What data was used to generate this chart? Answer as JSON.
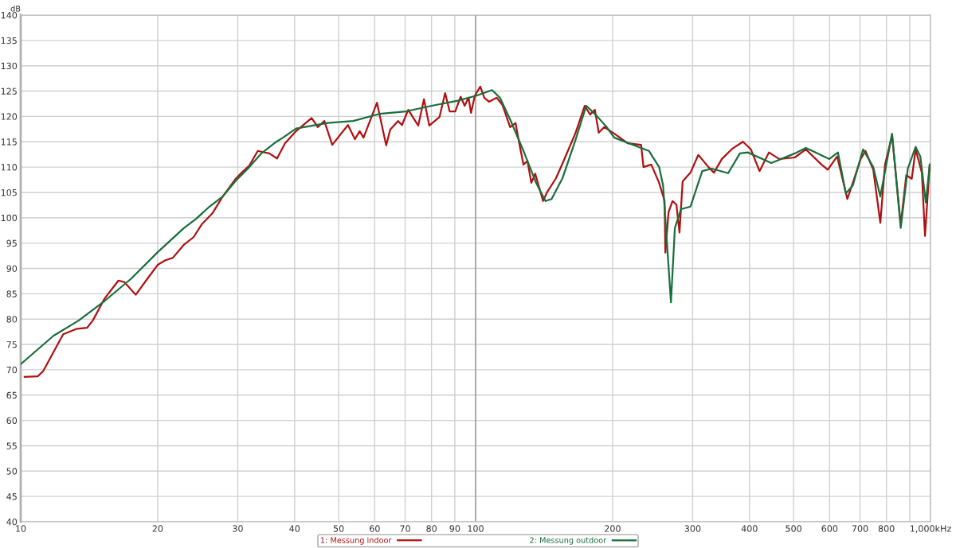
{
  "chart_data": {
    "type": "line",
    "ylabel": "dB",
    "log": "x",
    "grid": true,
    "legend": "bottom",
    "line_style": "solid",
    "marker": "none",
    "xlim": [
      10,
      1000
    ],
    "ylim": [
      40,
      140
    ],
    "xticks": [
      10,
      20,
      30,
      40,
      50,
      60,
      70,
      80,
      90,
      100,
      200,
      300,
      400,
      500,
      600,
      700,
      800,
      {
        "value": 900,
        "label": null
      },
      {
        "value": 1000,
        "label": "1,000kHz"
      }
    ],
    "yticks": [
      40,
      45,
      50,
      55,
      60,
      65,
      70,
      75,
      80,
      85,
      90,
      95,
      100,
      105,
      110,
      115,
      120,
      125,
      130,
      135,
      140
    ],
    "ref_lines": [
      {
        "axis": "x",
        "value": 100,
        "color": "#a0a0a0"
      }
    ],
    "series": [
      {
        "name": "1: Messung indoor",
        "color": "#b01010",
        "x": [
          10.2,
          10.9,
          11.2,
          12.4,
          13.3,
          14.0,
          14.4,
          15.3,
          16.4,
          16.9,
          17.9,
          19.0,
          20.0,
          20.8,
          21.6,
          22.8,
          24.0,
          25.0,
          26.4,
          27.8,
          29.7,
          30.6,
          31.8,
          33.2,
          35.2,
          36.6,
          38.1,
          40.3,
          43.6,
          45.0,
          46.5,
          48.4,
          52.4,
          54.3,
          55.6,
          56.7,
          60.7,
          63.6,
          64.9,
          67.5,
          68.9,
          71.1,
          74.8,
          77.0,
          79.1,
          83.3,
          85.7,
          87.7,
          90.2,
          92.7,
          94.6,
          96.5,
          97.7,
          99.6,
          102.4,
          104.5,
          107.0,
          111.3,
          114.5,
          119.1,
          122.4,
          124.9,
          127.4,
          130.0,
          132.6,
          135.2,
          140.7,
          143.5,
          150.0,
          155.4,
          165.6,
          173.7,
          178.5,
          182.9,
          186.5,
          191.8,
          201.9,
          216.0,
          231.1,
          233.9,
          243.3,
          253.2,
          260.3,
          261.3,
          265.5,
          270.9,
          276.3,
          280.7,
          285.2,
          296.7,
          308.7,
          325.1,
          334.2,
          347.8,
          366.2,
          387.1,
          402.9,
          420.9,
          441.4,
          464.8,
          503.1,
          531.9,
          575.9,
          594.5,
          623.5,
          656.5,
          702.4,
          719.3,
          748.4,
          775.7,
          794.3,
          823.2,
          860.1,
          884.5,
          909.4,
          927.5,
          957.2,
          972.5,
          996
        ],
        "values": [
          68.6,
          68.7,
          69.7,
          77.0,
          78.1,
          78.3,
          79.7,
          84.1,
          87.6,
          87.3,
          84.8,
          88.0,
          90.7,
          91.6,
          92.1,
          94.6,
          96.2,
          98.7,
          100.9,
          104.2,
          107.7,
          108.9,
          110.3,
          113.2,
          112.7,
          111.7,
          114.7,
          117.1,
          119.7,
          117.9,
          119.1,
          114.4,
          118.3,
          115.5,
          117.1,
          115.8,
          122.7,
          114.3,
          117.4,
          119.1,
          118.3,
          121.3,
          118.2,
          123.4,
          118.2,
          119.9,
          124.6,
          121.0,
          121.0,
          123.9,
          122.1,
          123.7,
          120.7,
          124.1,
          125.9,
          123.7,
          122.9,
          123.7,
          122.3,
          117.9,
          118.7,
          114.4,
          110.5,
          111.2,
          106.9,
          108.7,
          103.3,
          105.0,
          107.7,
          110.8,
          116.6,
          122.1,
          120.4,
          121.3,
          116.8,
          117.9,
          116.6,
          114.7,
          114.4,
          110.0,
          110.5,
          106.9,
          103.3,
          93.1,
          101.1,
          103.3,
          102.6,
          97.1,
          107.2,
          108.9,
          112.4,
          110.0,
          108.9,
          111.6,
          113.6,
          115.0,
          113.5,
          109.2,
          112.9,
          111.6,
          111.9,
          113.5,
          110.5,
          109.5,
          112.1,
          103.7,
          111.6,
          113.2,
          109.5,
          99.0,
          110.5,
          116.3,
          98.6,
          108.4,
          107.7,
          113.5,
          108.9,
          96.4,
          110.5
        ]
      },
      {
        "name": "2: Messung outdoor",
        "color": "#1a6e3c",
        "x": [
          10.0,
          11.8,
          13.4,
          15.3,
          17.5,
          20.0,
          22.8,
          24.3,
          26.0,
          27.8,
          29.7,
          31.8,
          33.8,
          36.2,
          37.7,
          40.3,
          47.2,
          53.8,
          61.4,
          70.3,
          80.1,
          91.3,
          100.4,
          108.7,
          113.1,
          119.1,
          127.4,
          135.8,
          142.4,
          146.9,
          155.4,
          165.6,
          175.1,
          184.3,
          194.1,
          201.9,
          240.4,
          253.2,
          258.3,
          268.8,
          274.2,
          282.9,
          296.7,
          314.9,
          330.4,
          359.1,
          381.0,
          396.6,
          446.7,
          503.1,
          531.9,
          599.3,
          626.0,
          651.4,
          675.1,
          710.8,
          748.4,
          775.7,
          823.2,
          860.1,
          891.3,
          927.5,
          949.8,
          976.5,
          996
        ],
        "values": [
          71.1,
          76.7,
          79.7,
          83.6,
          88.0,
          93.2,
          97.9,
          99.8,
          102.2,
          104.2,
          107.3,
          110.0,
          112.7,
          114.8,
          115.8,
          117.6,
          118.7,
          119.1,
          120.5,
          121.0,
          122.1,
          123.1,
          124.1,
          125.2,
          123.7,
          119.4,
          113.2,
          106.9,
          103.3,
          103.7,
          107.9,
          115.2,
          122.1,
          120.2,
          117.9,
          115.8,
          113.2,
          110.0,
          106.4,
          83.3,
          98.0,
          101.7,
          102.2,
          109.2,
          109.7,
          108.8,
          112.7,
          112.9,
          110.8,
          112.7,
          113.8,
          111.6,
          112.9,
          104.8,
          106.4,
          113.5,
          110.0,
          104.2,
          116.6,
          98.0,
          109.7,
          114.0,
          112.1,
          103.0,
          110.5
        ]
      }
    ]
  }
}
